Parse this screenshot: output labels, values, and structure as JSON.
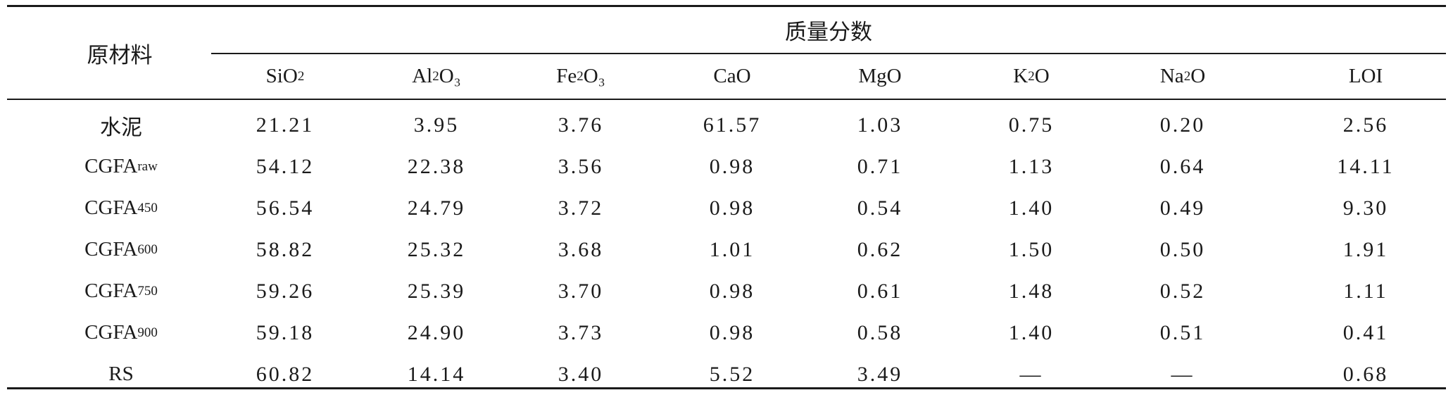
{
  "table": {
    "header": {
      "row_header": "原材料",
      "group_header": "质量分数"
    },
    "columns": [
      {
        "base": "SiO",
        "sub": "2",
        "tail": ""
      },
      {
        "base": "Al",
        "sub": "2",
        "tail": "O₃"
      },
      {
        "base": "Fe",
        "sub": "2",
        "tail": "O₃"
      },
      {
        "base": "CaO",
        "sub": "",
        "tail": ""
      },
      {
        "base": "MgO",
        "sub": "",
        "tail": ""
      },
      {
        "base": "K",
        "sub": "2",
        "tail": "O"
      },
      {
        "base": "Na",
        "sub": "2",
        "tail": "O"
      },
      {
        "base": "LOI",
        "sub": "",
        "tail": ""
      }
    ],
    "rows": [
      {
        "label": "水泥",
        "label_sub": "",
        "values": [
          "21.21",
          "3.95",
          "3.76",
          "61.57",
          "1.03",
          "0.75",
          "0.20",
          "2.56"
        ]
      },
      {
        "label": "CGFA",
        "label_sub": "raw",
        "values": [
          "54.12",
          "22.38",
          "3.56",
          "0.98",
          "0.71",
          "1.13",
          "0.64",
          "14.11"
        ]
      },
      {
        "label": "CGFA",
        "label_sub": "450",
        "values": [
          "56.54",
          "24.79",
          "3.72",
          "0.98",
          "0.54",
          "1.40",
          "0.49",
          "9.30"
        ]
      },
      {
        "label": "CGFA",
        "label_sub": "600",
        "values": [
          "58.82",
          "25.32",
          "3.68",
          "1.01",
          "0.62",
          "1.50",
          "0.50",
          "1.91"
        ]
      },
      {
        "label": "CGFA",
        "label_sub": "750",
        "values": [
          "59.26",
          "25.39",
          "3.70",
          "0.98",
          "0.61",
          "1.48",
          "0.52",
          "1.11"
        ]
      },
      {
        "label": "CGFA",
        "label_sub": "900",
        "values": [
          "59.18",
          "24.90",
          "3.73",
          "0.98",
          "0.58",
          "1.40",
          "0.51",
          "0.41"
        ]
      },
      {
        "label": "RS",
        "label_sub": "",
        "values": [
          "60.82",
          "14.14",
          "3.40",
          "5.52",
          "3.49",
          "—",
          "—",
          "0.68"
        ]
      }
    ]
  }
}
